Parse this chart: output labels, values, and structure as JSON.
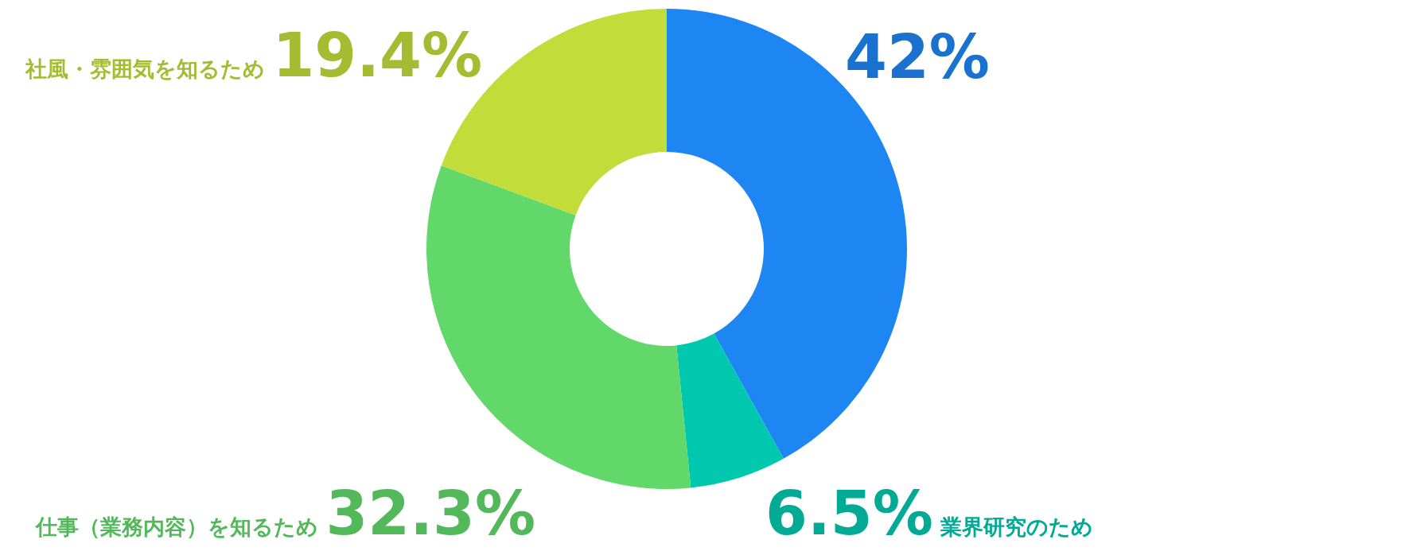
{
  "chart_data": {
    "type": "donut",
    "categories": [
      null,
      "業界研究のため",
      "仕事（業務内容）を知るため",
      "社風・雰囲気を知るため"
    ],
    "values": [
      42,
      6.5,
      32.3,
      19.4
    ],
    "value_labels": [
      "42%",
      "6.5%",
      "32.3%",
      "19.4%"
    ],
    "colors": [
      "#1e86f2",
      "#00c8ae",
      "#62d86a",
      "#c2dc3a"
    ]
  }
}
